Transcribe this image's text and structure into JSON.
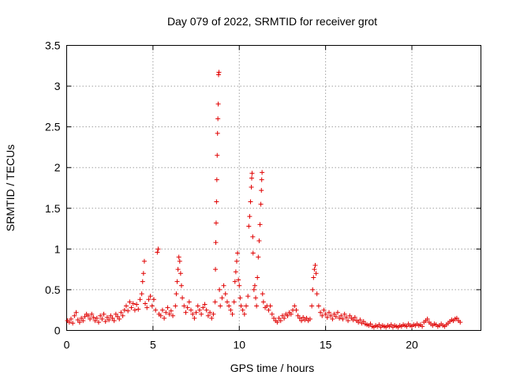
{
  "chart_data": {
    "type": "scatter",
    "title": "Day 079 of 2022, SRMTID for receiver grot",
    "xlabel": "GPS time / hours",
    "ylabel": "SRMTID / TECUs",
    "xlim": [
      0,
      24
    ],
    "ylim": [
      0,
      3.5
    ],
    "xticks": [
      0,
      5,
      10,
      15,
      20
    ],
    "yticks": [
      0,
      0.5,
      1,
      1.5,
      2,
      2.5,
      3,
      3.5
    ],
    "xtick_labels": [
      "0",
      "5",
      "10",
      "15",
      "20"
    ],
    "ytick_labels": [
      "0",
      "0.5",
      "1",
      "1.5",
      "2",
      "2.5",
      "3",
      "3.5"
    ],
    "grid": true,
    "marker": "+",
    "color": "#e00000",
    "series": [
      {
        "name": "SRMTID",
        "points": [
          [
            0.05,
            0.12
          ],
          [
            0.15,
            0.1
          ],
          [
            0.25,
            0.14
          ],
          [
            0.35,
            0.09
          ],
          [
            0.45,
            0.18
          ],
          [
            0.55,
            0.22
          ],
          [
            0.65,
            0.13
          ],
          [
            0.75,
            0.1
          ],
          [
            0.85,
            0.15
          ],
          [
            0.95,
            0.12
          ],
          [
            1.05,
            0.17
          ],
          [
            1.15,
            0.2
          ],
          [
            1.25,
            0.18
          ],
          [
            1.35,
            0.14
          ],
          [
            1.45,
            0.2
          ],
          [
            1.55,
            0.16
          ],
          [
            1.65,
            0.12
          ],
          [
            1.75,
            0.15
          ],
          [
            1.85,
            0.1
          ],
          [
            1.95,
            0.18
          ],
          [
            2.05,
            0.14
          ],
          [
            2.15,
            0.2
          ],
          [
            2.25,
            0.11
          ],
          [
            2.35,
            0.16
          ],
          [
            2.45,
            0.13
          ],
          [
            2.55,
            0.18
          ],
          [
            2.65,
            0.15
          ],
          [
            2.75,
            0.12
          ],
          [
            2.85,
            0.2
          ],
          [
            2.95,
            0.17
          ],
          [
            3.05,
            0.14
          ],
          [
            3.15,
            0.22
          ],
          [
            3.25,
            0.18
          ],
          [
            3.35,
            0.25
          ],
          [
            3.45,
            0.3
          ],
          [
            3.55,
            0.24
          ],
          [
            3.65,
            0.35
          ],
          [
            3.75,
            0.28
          ],
          [
            3.85,
            0.33
          ],
          [
            3.95,
            0.25
          ],
          [
            4.05,
            0.32
          ],
          [
            4.15,
            0.26
          ],
          [
            4.25,
            0.38
          ],
          [
            4.35,
            0.45
          ],
          [
            4.4,
            0.6
          ],
          [
            4.45,
            0.7
          ],
          [
            4.5,
            0.85
          ],
          [
            4.55,
            0.33
          ],
          [
            4.65,
            0.28
          ],
          [
            4.75,
            0.38
          ],
          [
            4.85,
            0.42
          ],
          [
            4.95,
            0.3
          ],
          [
            5.05,
            0.38
          ],
          [
            5.15,
            0.25
          ],
          [
            5.25,
            0.96
          ],
          [
            5.3,
            1.0
          ],
          [
            5.35,
            0.2
          ],
          [
            5.45,
            0.18
          ],
          [
            5.55,
            0.25
          ],
          [
            5.65,
            0.15
          ],
          [
            5.75,
            0.22
          ],
          [
            5.85,
            0.28
          ],
          [
            5.95,
            0.2
          ],
          [
            6.05,
            0.24
          ],
          [
            6.15,
            0.18
          ],
          [
            6.3,
            0.3
          ],
          [
            6.35,
            0.45
          ],
          [
            6.4,
            0.6
          ],
          [
            6.45,
            0.75
          ],
          [
            6.5,
            0.9
          ],
          [
            6.55,
            0.85
          ],
          [
            6.6,
            0.7
          ],
          [
            6.65,
            0.55
          ],
          [
            6.7,
            0.4
          ],
          [
            6.8,
            0.3
          ],
          [
            6.9,
            0.22
          ],
          [
            7.0,
            0.28
          ],
          [
            7.1,
            0.35
          ],
          [
            7.2,
            0.25
          ],
          [
            7.3,
            0.2
          ],
          [
            7.4,
            0.15
          ],
          [
            7.5,
            0.22
          ],
          [
            7.6,
            0.3
          ],
          [
            7.7,
            0.25
          ],
          [
            7.8,
            0.2
          ],
          [
            7.9,
            0.28
          ],
          [
            8.0,
            0.32
          ],
          [
            8.1,
            0.25
          ],
          [
            8.2,
            0.18
          ],
          [
            8.3,
            0.22
          ],
          [
            8.4,
            0.15
          ],
          [
            8.5,
            0.2
          ],
          [
            8.6,
            0.35
          ],
          [
            8.62,
            0.75
          ],
          [
            8.64,
            1.08
          ],
          [
            8.66,
            1.32
          ],
          [
            8.68,
            1.58
          ],
          [
            8.7,
            1.85
          ],
          [
            8.72,
            2.15
          ],
          [
            8.74,
            2.42
          ],
          [
            8.76,
            2.6
          ],
          [
            8.78,
            2.78
          ],
          [
            8.8,
            3.14
          ],
          [
            8.82,
            3.17
          ],
          [
            8.85,
            0.5
          ],
          [
            8.9,
            0.3
          ],
          [
            9.0,
            0.4
          ],
          [
            9.1,
            0.55
          ],
          [
            9.2,
            0.45
          ],
          [
            9.3,
            0.35
          ],
          [
            9.4,
            0.3
          ],
          [
            9.5,
            0.25
          ],
          [
            9.6,
            0.2
          ],
          [
            9.7,
            0.35
          ],
          [
            9.75,
            0.6
          ],
          [
            9.8,
            0.72
          ],
          [
            9.85,
            0.85
          ],
          [
            9.9,
            0.95
          ],
          [
            9.95,
            0.62
          ],
          [
            10.0,
            0.55
          ],
          [
            10.05,
            0.4
          ],
          [
            10.1,
            0.3
          ],
          [
            10.2,
            0.25
          ],
          [
            10.3,
            0.2
          ],
          [
            10.4,
            0.3
          ],
          [
            10.5,
            0.42
          ],
          [
            10.55,
            1.28
          ],
          [
            10.6,
            1.4
          ],
          [
            10.65,
            1.58
          ],
          [
            10.7,
            1.76
          ],
          [
            10.72,
            1.87
          ],
          [
            10.74,
            1.93
          ],
          [
            10.78,
            1.15
          ],
          [
            10.8,
            0.95
          ],
          [
            10.85,
            0.5
          ],
          [
            10.9,
            0.55
          ],
          [
            10.95,
            0.4
          ],
          [
            11.0,
            0.3
          ],
          [
            11.05,
            0.65
          ],
          [
            11.1,
            0.9
          ],
          [
            11.15,
            1.1
          ],
          [
            11.2,
            1.3
          ],
          [
            11.25,
            1.55
          ],
          [
            11.28,
            1.72
          ],
          [
            11.3,
            1.85
          ],
          [
            11.32,
            1.94
          ],
          [
            11.35,
            0.45
          ],
          [
            11.4,
            0.35
          ],
          [
            11.5,
            0.28
          ],
          [
            11.6,
            0.3
          ],
          [
            11.7,
            0.25
          ],
          [
            11.8,
            0.3
          ],
          [
            11.9,
            0.2
          ],
          [
            12.0,
            0.15
          ],
          [
            12.1,
            0.12
          ],
          [
            12.2,
            0.1
          ],
          [
            12.3,
            0.15
          ],
          [
            12.4,
            0.12
          ],
          [
            12.5,
            0.18
          ],
          [
            12.6,
            0.15
          ],
          [
            12.7,
            0.2
          ],
          [
            12.8,
            0.18
          ],
          [
            12.9,
            0.22
          ],
          [
            13.0,
            0.2
          ],
          [
            13.1,
            0.25
          ],
          [
            13.2,
            0.3
          ],
          [
            13.3,
            0.25
          ],
          [
            13.4,
            0.18
          ],
          [
            13.5,
            0.15
          ],
          [
            13.6,
            0.12
          ],
          [
            13.7,
            0.16
          ],
          [
            13.8,
            0.13
          ],
          [
            13.9,
            0.15
          ],
          [
            14.0,
            0.12
          ],
          [
            14.1,
            0.14
          ],
          [
            14.2,
            0.3
          ],
          [
            14.25,
            0.5
          ],
          [
            14.3,
            0.65
          ],
          [
            14.35,
            0.75
          ],
          [
            14.4,
            0.8
          ],
          [
            14.45,
            0.7
          ],
          [
            14.5,
            0.45
          ],
          [
            14.6,
            0.3
          ],
          [
            14.7,
            0.22
          ],
          [
            14.8,
            0.18
          ],
          [
            14.9,
            0.25
          ],
          [
            15.0,
            0.2
          ],
          [
            15.1,
            0.16
          ],
          [
            15.2,
            0.22
          ],
          [
            15.3,
            0.18
          ],
          [
            15.4,
            0.14
          ],
          [
            15.5,
            0.2
          ],
          [
            15.6,
            0.17
          ],
          [
            15.7,
            0.22
          ],
          [
            15.8,
            0.15
          ],
          [
            15.9,
            0.18
          ],
          [
            16.0,
            0.14
          ],
          [
            16.1,
            0.2
          ],
          [
            16.2,
            0.16
          ],
          [
            16.3,
            0.12
          ],
          [
            16.4,
            0.18
          ],
          [
            16.5,
            0.15
          ],
          [
            16.6,
            0.13
          ],
          [
            16.7,
            0.16
          ],
          [
            16.8,
            0.12
          ],
          [
            16.9,
            0.1
          ],
          [
            17.0,
            0.13
          ],
          [
            17.1,
            0.09
          ],
          [
            17.2,
            0.11
          ],
          [
            17.3,
            0.08
          ],
          [
            17.4,
            0.07
          ],
          [
            17.5,
            0.06
          ],
          [
            17.6,
            0.08
          ],
          [
            17.7,
            0.05
          ],
          [
            17.8,
            0.04
          ],
          [
            17.9,
            0.06
          ],
          [
            18.0,
            0.05
          ],
          [
            18.1,
            0.07
          ],
          [
            18.2,
            0.04
          ],
          [
            18.3,
            0.06
          ],
          [
            18.4,
            0.05
          ],
          [
            18.5,
            0.04
          ],
          [
            18.6,
            0.06
          ],
          [
            18.7,
            0.05
          ],
          [
            18.8,
            0.07
          ],
          [
            18.9,
            0.04
          ],
          [
            19.0,
            0.06
          ],
          [
            19.1,
            0.05
          ],
          [
            19.2,
            0.04
          ],
          [
            19.3,
            0.06
          ],
          [
            19.4,
            0.05
          ],
          [
            19.5,
            0.07
          ],
          [
            19.6,
            0.06
          ],
          [
            19.7,
            0.05
          ],
          [
            19.8,
            0.08
          ],
          [
            19.9,
            0.06
          ],
          [
            20.0,
            0.05
          ],
          [
            20.1,
            0.07
          ],
          [
            20.2,
            0.06
          ],
          [
            20.3,
            0.08
          ],
          [
            20.4,
            0.06
          ],
          [
            20.5,
            0.07
          ],
          [
            20.6,
            0.05
          ],
          [
            20.7,
            0.1
          ],
          [
            20.8,
            0.12
          ],
          [
            20.9,
            0.14
          ],
          [
            21.0,
            0.1
          ],
          [
            21.1,
            0.08
          ],
          [
            21.2,
            0.06
          ],
          [
            21.3,
            0.08
          ],
          [
            21.4,
            0.07
          ],
          [
            21.5,
            0.05
          ],
          [
            21.6,
            0.06
          ],
          [
            21.7,
            0.08
          ],
          [
            21.8,
            0.06
          ],
          [
            21.9,
            0.05
          ],
          [
            22.0,
            0.07
          ],
          [
            22.1,
            0.09
          ],
          [
            22.2,
            0.11
          ],
          [
            22.3,
            0.13
          ],
          [
            22.4,
            0.12
          ],
          [
            22.5,
            0.14
          ],
          [
            22.6,
            0.15
          ],
          [
            22.7,
            0.12
          ],
          [
            22.8,
            0.1
          ]
        ]
      }
    ]
  }
}
